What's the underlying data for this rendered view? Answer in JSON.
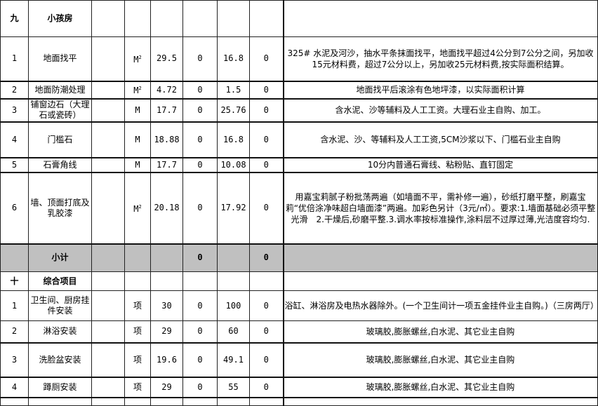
{
  "sections": [
    {
      "header": {
        "no": "九",
        "name": "小孩房"
      },
      "rows": [
        {
          "no": "1",
          "name": "地面找平",
          "unit": "M",
          "unit_sup": "2",
          "qty": "29.5",
          "c5": "0",
          "c6": "16.8",
          "c7": "0",
          "desc": "325# 水泥及河沙，抽水平条抹面找平，地面找平超过4公分到7公分之间，另加收15元材料费，超过7公分以上，另加收25元材料费,按实际面积结算。"
        },
        {
          "no": "2",
          "name": "地面防潮处理",
          "unit": "M",
          "unit_sup": "2",
          "qty": "4.72",
          "c5": "0",
          "c6": "1.5",
          "c7": "0",
          "desc": "地面找平后滚涂有色地坪漆，以实际面积计算"
        },
        {
          "no": "3",
          "name": "铺窗边石（大理石或瓷砖）",
          "unit": "M",
          "unit_sup": "",
          "qty": "17.7",
          "c5": "0",
          "c6": "25.76",
          "c7": "0",
          "desc": "含水泥、沙等辅料及人工工资。大理石业主自购、加工。"
        },
        {
          "no": "4",
          "name": "门槛石",
          "unit": "M",
          "unit_sup": "",
          "qty": "18.88",
          "c5": "0",
          "c6": "16.8",
          "c7": "0",
          "desc": "含水泥、沙、等辅料及人工工资,5CM沙浆以下、门槛石业主自购"
        },
        {
          "no": "5",
          "name": "石膏角线",
          "unit": "M",
          "unit_sup": "",
          "qty": "17.7",
          "c5": "0",
          "c6": "10.08",
          "c7": "0",
          "desc": "10分内普通石膏线、粘粉贴、直钉固定"
        },
        {
          "no": "6",
          "name": "墙、顶面打底及乳胶漆",
          "unit": "M",
          "unit_sup": "2",
          "qty": "20.18",
          "c5": "0",
          "c6": "17.92",
          "c7": "0",
          "desc": "用嘉宝莉腻子粉批荡两遍（如墙面不平，需补修一遍），砂纸打磨平整，刷嘉宝莉“优倍涂净味超白墙面漆”两遍。加彩色另计（3元/㎡）。要求:1.墙面基础必须平整光滑　2.干燥后,砂磨平整.3.调水率按标准操作,涂料层不过厚过薄,光洁度容均匀."
        }
      ],
      "subtotal": {
        "label": "小计",
        "c5": "0",
        "c7": "0"
      }
    },
    {
      "header": {
        "no": "十",
        "name": "综合项目"
      },
      "rows": [
        {
          "no": "1",
          "name": "卫生间、厨房挂件安装",
          "unit": "项",
          "unit_sup": "",
          "qty": "30",
          "c5": "0",
          "c6": "100",
          "c7": "0",
          "desc": "浴缸、淋浴房及电热水器除外。(一个卫生间计一项五金挂件业主自购。)（三房两厅）"
        },
        {
          "no": "2",
          "name": "淋浴安装",
          "unit": "项",
          "unit_sup": "",
          "qty": "29",
          "c5": "0",
          "c6": "60",
          "c7": "0",
          "desc": "玻璃胶,膨胀螺丝,白水泥、其它业主自购"
        },
        {
          "no": "3",
          "name": "洗脸盆安装",
          "unit": "项",
          "unit_sup": "",
          "qty": "19.6",
          "c5": "0",
          "c6": "49.1",
          "c7": "0",
          "desc": "玻璃胶,膨胀螺丝,白水泥、其它业主自购"
        },
        {
          "no": "4",
          "name": "蹲厕安装",
          "unit": "项",
          "unit_sup": "",
          "qty": "29",
          "c5": "0",
          "c6": "55",
          "c7": "0",
          "desc": "玻璃胶,膨胀螺丝,白水泥、其它业主自购"
        }
      ]
    }
  ]
}
